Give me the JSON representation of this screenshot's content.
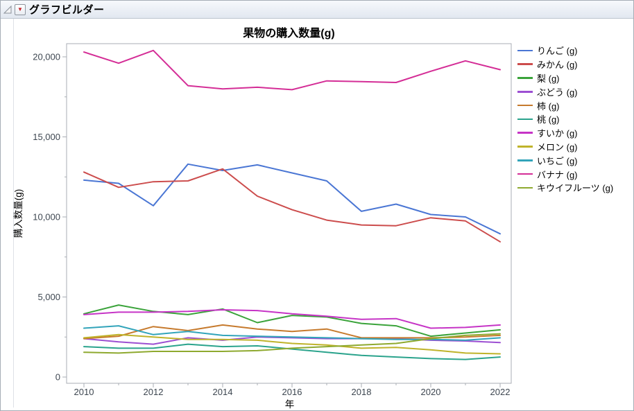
{
  "window": {
    "title": "グラフビルダー",
    "red_triangle_glyph": "▼"
  },
  "chart_data": {
    "type": "line",
    "title": "果物の購入数量(g)",
    "xlabel": "年",
    "ylabel": "購入数量(g)",
    "x": [
      2010,
      2011,
      2012,
      2013,
      2014,
      2015,
      2016,
      2017,
      2018,
      2019,
      2020,
      2021,
      2022
    ],
    "x_major_ticks": [
      2010,
      2012,
      2014,
      2016,
      2018,
      2020,
      2022
    ],
    "x_minor_ticks": [
      2011,
      2013,
      2015,
      2017,
      2019,
      2021
    ],
    "y_ticks": [
      {
        "value": 0,
        "label": "0"
      },
      {
        "value": 5000,
        "label": "5,000"
      },
      {
        "value": 10000,
        "label": "10,000"
      },
      {
        "value": 15000,
        "label": "15,000"
      },
      {
        "value": 20000,
        "label": "20,000"
      }
    ],
    "y_minor_ticks": [
      2500,
      7500,
      12500,
      17500
    ],
    "ylim": [
      0,
      20800
    ],
    "grid": false,
    "legend_position": "right",
    "colors": {
      "frame": "#a9adb4",
      "tick_text": "#3d4650",
      "title_text": "#000000"
    },
    "series": [
      {
        "name": "りんご (g)",
        "color": "#4A76D4",
        "values": [
          12300,
          12100,
          10700,
          13300,
          12900,
          13250,
          12750,
          12250,
          10350,
          10800,
          10150,
          10000,
          8950
        ]
      },
      {
        "name": "みかん (g)",
        "color": "#CC4C4C",
        "values": [
          12800,
          11850,
          12200,
          12250,
          13000,
          11300,
          10450,
          9800,
          9500,
          9450,
          9950,
          9750,
          8450
        ]
      },
      {
        "name": "梨 (g)",
        "color": "#3AA33A",
        "values": [
          3950,
          4500,
          4100,
          3900,
          4250,
          3400,
          3850,
          3750,
          3350,
          3200,
          2550,
          2750,
          2950
        ]
      },
      {
        "name": "ぶどう (g)",
        "color": "#9C4FD2",
        "values": [
          2400,
          2200,
          2050,
          2450,
          2300,
          2500,
          2450,
          2400,
          2400,
          2400,
          2300,
          2250,
          2150
        ]
      },
      {
        "name": "柿 (g)",
        "color": "#C67A2D",
        "values": [
          2400,
          2550,
          3150,
          2900,
          3250,
          3000,
          2850,
          3000,
          2450,
          2450,
          2450,
          2500,
          2600
        ]
      },
      {
        "name": "桃 (g)",
        "color": "#2AA38C",
        "values": [
          1900,
          1800,
          1800,
          2050,
          1900,
          1950,
          1750,
          1550,
          1350,
          1250,
          1150,
          1100,
          1250
        ]
      },
      {
        "name": "すいか (g)",
        "color": "#C634C6",
        "values": [
          3900,
          4050,
          4050,
          4100,
          4200,
          4150,
          3950,
          3800,
          3600,
          3650,
          3050,
          3100,
          3250
        ]
      },
      {
        "name": "メロン (g)",
        "color": "#BFB32A",
        "values": [
          2450,
          2650,
          2500,
          2350,
          2350,
          2300,
          2100,
          2000,
          1800,
          1850,
          1700,
          1500,
          1450
        ]
      },
      {
        "name": "いちご (g)",
        "color": "#32A4BA",
        "values": [
          3050,
          3200,
          2650,
          2850,
          2600,
          2550,
          2500,
          2450,
          2400,
          2350,
          2350,
          2300,
          2450
        ]
      },
      {
        "name": "バナナ (g)",
        "color": "#D42D96",
        "values": [
          20300,
          19600,
          20400,
          18200,
          18000,
          18100,
          17950,
          18500,
          18450,
          18400,
          19100,
          19750,
          19200
        ]
      },
      {
        "name": "キウイフルーツ (g)",
        "color": "#8EA92F",
        "values": [
          1550,
          1500,
          1600,
          1600,
          1600,
          1650,
          1800,
          1900,
          2000,
          2100,
          2400,
          2600,
          2700
        ]
      }
    ]
  }
}
